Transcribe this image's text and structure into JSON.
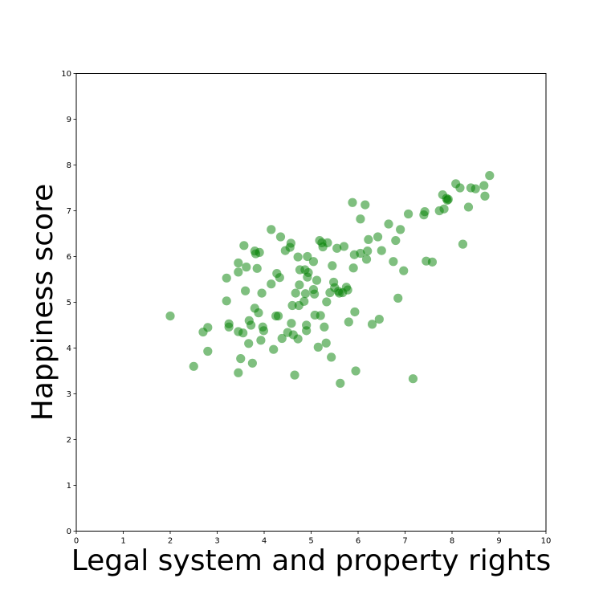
{
  "chart_data": {
    "type": "scatter",
    "title": "",
    "xlabel": "Legal system and property rights",
    "ylabel": "Happiness score",
    "xlim": [
      0,
      10
    ],
    "ylim": [
      0,
      10
    ],
    "xticks": [
      0,
      1,
      2,
      3,
      4,
      5,
      6,
      7,
      8,
      9,
      10
    ],
    "yticks": [
      0,
      1,
      2,
      3,
      4,
      5,
      6,
      7,
      8,
      9,
      10
    ],
    "grid": false,
    "marker_color": "#008000",
    "marker_alpha": 0.5,
    "points": [
      [
        2.0,
        4.7
      ],
      [
        2.5,
        3.6
      ],
      [
        2.7,
        4.35
      ],
      [
        2.8,
        4.45
      ],
      [
        2.8,
        3.93
      ],
      [
        3.2,
        5.53
      ],
      [
        3.2,
        5.03
      ],
      [
        3.25,
        4.53
      ],
      [
        3.25,
        4.46
      ],
      [
        3.45,
        3.46
      ],
      [
        3.45,
        5.86
      ],
      [
        3.45,
        5.66
      ],
      [
        3.45,
        4.36
      ],
      [
        3.5,
        3.77
      ],
      [
        3.55,
        4.33
      ],
      [
        3.57,
        6.24
      ],
      [
        3.6,
        5.25
      ],
      [
        3.62,
        5.77
      ],
      [
        3.67,
        4.1
      ],
      [
        3.68,
        4.6
      ],
      [
        3.72,
        4.5
      ],
      [
        3.75,
        3.67
      ],
      [
        3.8,
        4.87
      ],
      [
        3.8,
        6.12
      ],
      [
        3.82,
        6.06
      ],
      [
        3.85,
        5.74
      ],
      [
        3.88,
        4.77
      ],
      [
        3.9,
        6.09
      ],
      [
        3.93,
        4.17
      ],
      [
        3.95,
        5.2
      ],
      [
        3.97,
        4.46
      ],
      [
        3.99,
        4.38
      ],
      [
        4.15,
        6.59
      ],
      [
        4.15,
        5.4
      ],
      [
        4.2,
        3.97
      ],
      [
        4.25,
        4.7
      ],
      [
        4.27,
        5.63
      ],
      [
        4.3,
        4.7
      ],
      [
        4.33,
        5.54
      ],
      [
        4.35,
        6.43
      ],
      [
        4.38,
        4.21
      ],
      [
        4.45,
        6.13
      ],
      [
        4.5,
        4.34
      ],
      [
        4.55,
        6.2
      ],
      [
        4.57,
        6.29
      ],
      [
        4.58,
        4.54
      ],
      [
        4.6,
        4.93
      ],
      [
        4.62,
        4.29
      ],
      [
        4.65,
        3.41
      ],
      [
        4.67,
        5.2
      ],
      [
        4.72,
        4.2
      ],
      [
        4.72,
        5.99
      ],
      [
        4.74,
        4.93
      ],
      [
        4.75,
        5.38
      ],
      [
        4.76,
        5.71
      ],
      [
        4.85,
        5.02
      ],
      [
        4.87,
        5.71
      ],
      [
        4.88,
        5.19
      ],
      [
        4.9,
        4.5
      ],
      [
        4.9,
        4.38
      ],
      [
        4.92,
        6.0
      ],
      [
        4.92,
        5.55
      ],
      [
        4.94,
        5.65
      ],
      [
        5.05,
        5.89
      ],
      [
        5.05,
        5.28
      ],
      [
        5.07,
        5.18
      ],
      [
        5.08,
        4.72
      ],
      [
        5.12,
        5.48
      ],
      [
        5.15,
        4.02
      ],
      [
        5.18,
        6.35
      ],
      [
        5.2,
        4.71
      ],
      [
        5.23,
        6.3
      ],
      [
        5.25,
        6.21
      ],
      [
        5.28,
        4.46
      ],
      [
        5.32,
        4.11
      ],
      [
        5.33,
        5.01
      ],
      [
        5.35,
        6.3
      ],
      [
        5.4,
        5.21
      ],
      [
        5.43,
        3.8
      ],
      [
        5.45,
        5.8
      ],
      [
        5.48,
        5.44
      ],
      [
        5.5,
        5.32
      ],
      [
        5.55,
        6.18
      ],
      [
        5.58,
        5.24
      ],
      [
        5.6,
        5.2
      ],
      [
        5.62,
        3.23
      ],
      [
        5.67,
        5.21
      ],
      [
        5.7,
        6.22
      ],
      [
        5.75,
        5.33
      ],
      [
        5.78,
        5.27
      ],
      [
        5.8,
        4.57
      ],
      [
        5.88,
        7.18
      ],
      [
        5.9,
        5.75
      ],
      [
        5.92,
        6.04
      ],
      [
        5.93,
        4.79
      ],
      [
        5.95,
        3.5
      ],
      [
        6.05,
        6.07
      ],
      [
        6.05,
        6.82
      ],
      [
        6.15,
        7.13
      ],
      [
        6.18,
        5.94
      ],
      [
        6.2,
        6.12
      ],
      [
        6.22,
        6.37
      ],
      [
        6.3,
        4.52
      ],
      [
        6.42,
        6.43
      ],
      [
        6.45,
        4.63
      ],
      [
        6.5,
        6.13
      ],
      [
        6.65,
        6.71
      ],
      [
        6.75,
        5.89
      ],
      [
        6.8,
        6.35
      ],
      [
        6.85,
        5.09
      ],
      [
        6.9,
        6.59
      ],
      [
        6.97,
        5.69
      ],
      [
        7.07,
        6.93
      ],
      [
        7.17,
        3.33
      ],
      [
        7.4,
        6.91
      ],
      [
        7.42,
        6.98
      ],
      [
        7.45,
        5.9
      ],
      [
        7.58,
        5.88
      ],
      [
        7.73,
        7.0
      ],
      [
        7.8,
        7.35
      ],
      [
        7.83,
        7.04
      ],
      [
        7.88,
        7.27
      ],
      [
        7.9,
        7.23
      ],
      [
        7.92,
        7.25
      ],
      [
        8.08,
        7.59
      ],
      [
        8.17,
        7.5
      ],
      [
        8.23,
        6.27
      ],
      [
        8.35,
        7.08
      ],
      [
        8.4,
        7.5
      ],
      [
        8.5,
        7.48
      ],
      [
        8.68,
        7.55
      ],
      [
        8.7,
        7.32
      ],
      [
        8.8,
        7.77
      ]
    ]
  }
}
